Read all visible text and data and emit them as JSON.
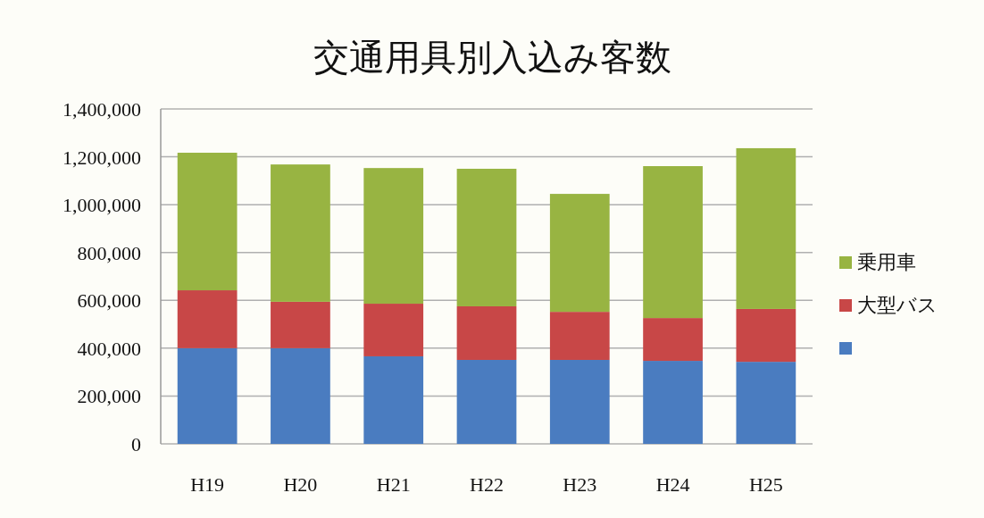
{
  "chart_data": {
    "type": "bar",
    "title": "交通用具別入込み客数",
    "categories": [
      "H19",
      "H20",
      "H21",
      "H22",
      "H23",
      "H24",
      "H25"
    ],
    "stacked": true,
    "series": [
      {
        "color": "#4a7cc0",
        "values": [
          400000,
          400000,
          366000,
          351000,
          351000,
          347000,
          343000
        ]
      },
      {
        "name": "大型バス",
        "color": "#c84747",
        "values": [
          242000,
          194000,
          220000,
          224000,
          201000,
          179000,
          221000
        ]
      },
      {
        "name": "乗用車",
        "color": "#98b442",
        "values": [
          575000,
          574000,
          567000,
          575000,
          493000,
          635000,
          672000
        ]
      }
    ],
    "ylim": [
      0,
      1400000
    ],
    "yticks": [
      {
        "value": 0,
        "label": "0"
      },
      {
        "value": 200000,
        "label": "200,000"
      },
      {
        "value": 400000,
        "label": "400,000"
      },
      {
        "value": 600000,
        "label": "600,000"
      },
      {
        "value": 800000,
        "label": "800,000"
      },
      {
        "value": 1000000,
        "label": "1,000,000"
      },
      {
        "value": 1200000,
        "label": "1,200,000"
      },
      {
        "value": 1400000,
        "label": "1,400,000"
      }
    ],
    "grid": "y",
    "legend": "right"
  }
}
